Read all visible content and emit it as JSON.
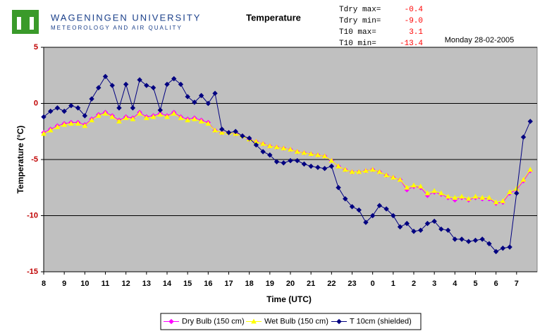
{
  "header": {
    "logo_line1": "WAGENINGEN UNIVERSITY",
    "logo_line2": "METEOROLOGY AND AIR QUALITY",
    "stats": [
      {
        "label": "Tdry max=",
        "value": "-0.4"
      },
      {
        "label": "Tdry min=",
        "value": "-9.0"
      },
      {
        "label": "T10  max=",
        "value": "3.1"
      },
      {
        "label": "T10  min=",
        "value": "-13.4"
      }
    ],
    "date": "Monday 28-02-2005"
  },
  "chart_data": {
    "type": "line",
    "title": "Temperature",
    "x_label": "Time (UTC)",
    "y_label": "Temperature (°C)",
    "categories": [
      "8",
      null,
      null,
      "9",
      null,
      null,
      "10",
      null,
      null,
      "11",
      null,
      null,
      "12",
      null,
      null,
      "13",
      null,
      null,
      "14",
      null,
      null,
      "15",
      null,
      null,
      "16",
      null,
      null,
      "17",
      null,
      null,
      "18",
      null,
      null,
      "19",
      null,
      null,
      "20",
      null,
      null,
      "21",
      null,
      null,
      "22",
      null,
      null,
      "23",
      null,
      null,
      "0",
      null,
      null,
      "1",
      null,
      null,
      "2",
      null,
      null,
      "3",
      null,
      null,
      "4",
      null,
      null,
      "5",
      null,
      null,
      "6",
      null,
      null,
      "7",
      null,
      null
    ],
    "ylim": [
      -15,
      5
    ],
    "yticks": [
      5,
      0,
      -5,
      -10,
      -15
    ],
    "grid": true,
    "legend": "bottom",
    "series": [
      {
        "name": "Dry Bulb (150 cm)",
        "color": "#ff00ff",
        "marker": "diamond",
        "values": [
          -2.6,
          -2.3,
          -2.0,
          -1.8,
          -1.7,
          -1.7,
          -1.9,
          -1.4,
          -1.0,
          -0.8,
          -1.1,
          -1.5,
          -1.2,
          -1.3,
          -0.8,
          -1.2,
          -1.1,
          -0.9,
          -1.1,
          -0.8,
          -1.2,
          -1.4,
          -1.3,
          -1.5,
          -1.7,
          -2.4,
          -2.6,
          -2.6,
          -2.7,
          -2.9,
          -3.2,
          -3.4,
          -3.6,
          -3.8,
          -3.9,
          -4.0,
          -4.1,
          -4.3,
          -4.4,
          -4.5,
          -4.6,
          -4.7,
          -5.1,
          -5.6,
          -5.9,
          -6.1,
          -6.1,
          -6.0,
          -5.9,
          -6.1,
          -6.4,
          -6.6,
          -6.8,
          -7.7,
          -7.4,
          -7.5,
          -8.2,
          -7.9,
          -8.1,
          -8.4,
          -8.6,
          -8.4,
          -8.6,
          -8.4,
          -8.5,
          -8.5,
          -8.9,
          -8.8,
          -8.0,
          -7.7,
          -6.9,
          -6.0
        ]
      },
      {
        "name": "Wet Bulb (150 cm)",
        "color": "#ffff00",
        "marker": "triangle",
        "values": [
          -2.7,
          -2.4,
          -2.1,
          -1.9,
          -1.8,
          -1.8,
          -2.0,
          -1.5,
          -1.1,
          -0.9,
          -1.2,
          -1.6,
          -1.3,
          -1.4,
          -0.9,
          -1.3,
          -1.2,
          -1.0,
          -1.2,
          -0.9,
          -1.3,
          -1.5,
          -1.4,
          -1.6,
          -1.8,
          -2.4,
          -2.6,
          -2.6,
          -2.7,
          -2.9,
          -3.2,
          -3.4,
          -3.6,
          -3.8,
          -3.9,
          -4.0,
          -4.1,
          -4.3,
          -4.4,
          -4.5,
          -4.6,
          -4.7,
          -5.1,
          -5.6,
          -5.9,
          -6.1,
          -6.1,
          -6.0,
          -5.9,
          -6.1,
          -6.4,
          -6.6,
          -6.8,
          -7.5,
          -7.3,
          -7.4,
          -8.0,
          -7.8,
          -8.0,
          -8.3,
          -8.4,
          -8.3,
          -8.5,
          -8.3,
          -8.4,
          -8.4,
          -8.8,
          -8.7,
          -7.9,
          -7.6,
          -6.8,
          -5.9
        ]
      },
      {
        "name": "T 10cm (shielded)",
        "color": "#000080",
        "marker": "diamond",
        "values": [
          -1.2,
          -0.7,
          -0.4,
          -0.7,
          -0.2,
          -0.4,
          -1.1,
          0.4,
          1.4,
          2.4,
          1.6,
          -0.4,
          1.7,
          -0.4,
          2.1,
          1.6,
          1.4,
          -0.6,
          1.7,
          2.2,
          1.7,
          0.6,
          0.1,
          0.7,
          0.0,
          0.9,
          -2.3,
          -2.6,
          -2.5,
          -2.9,
          -3.1,
          -3.7,
          -4.3,
          -4.6,
          -5.2,
          -5.3,
          -5.1,
          -5.1,
          -5.4,
          -5.6,
          -5.7,
          -5.8,
          -5.6,
          -7.5,
          -8.5,
          -9.2,
          -9.5,
          -10.6,
          -10.0,
          -9.1,
          -9.4,
          -10.0,
          -11.0,
          -10.7,
          -11.4,
          -11.3,
          -10.7,
          -10.5,
          -11.2,
          -11.3,
          -12.1,
          -12.1,
          -12.3,
          -12.2,
          -12.1,
          -12.5,
          -13.2,
          -12.9,
          -12.8,
          -8.0,
          -3.0,
          -1.6
        ]
      }
    ]
  }
}
